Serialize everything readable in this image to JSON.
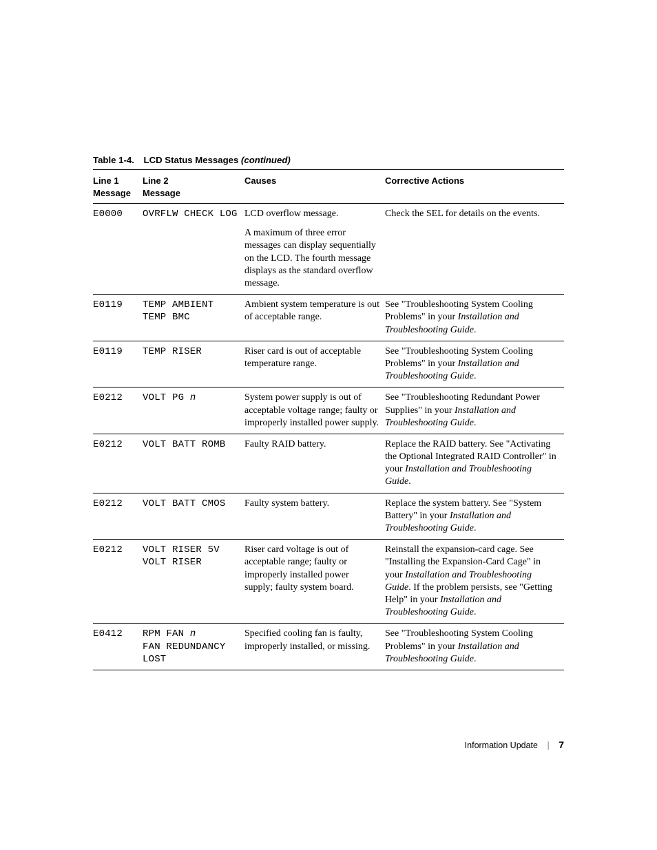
{
  "caption": {
    "label": "Table 1-4.",
    "title": "LCD Status Messages ",
    "cont": "(continued)"
  },
  "headers": {
    "c1a": "Line 1",
    "c1b": "Message",
    "c2a": "Line 2",
    "c2b": "Message",
    "c3": "Causes",
    "c4": "Corrective Actions"
  },
  "rows": [
    {
      "l1": "E0000",
      "l2": "OVRFLW CHECK LOG",
      "cause_main": "LCD overflow message.",
      "cause_sub": "A maximum of three error messages can display sequentially on the LCD. The fourth message displays as the standard overflow message.",
      "fix": "Check the SEL for details on the events."
    },
    {
      "l1": "E0119",
      "l2a": "TEMP AMBIENT",
      "l2b": "TEMP BMC",
      "cause": "Ambient system temperature is out of acceptable range.",
      "fix_pre": "See \"Troubleshooting System Cooling Problems\" in your ",
      "fix_ital": "Installation and Troubleshooting Guide",
      "fix_post": "."
    },
    {
      "l1": "E0119",
      "l2": "TEMP RISER",
      "cause": "Riser card is out of acceptable temperature range.",
      "fix_pre": "See \"Troubleshooting System Cooling Problems\" in your ",
      "fix_ital": "Installation and Troubleshooting Guide",
      "fix_post": "."
    },
    {
      "l1": "E0212",
      "l2_pre": "VOLT PG ",
      "l2_var": "n",
      "cause": "System power supply is out of acceptable voltage range; faulty or improperly installed power supply.",
      "fix_pre": "See \"Troubleshooting Redundant Power Supplies\" in your ",
      "fix_ital": "Installation and Troubleshooting Guide",
      "fix_post": "."
    },
    {
      "l1": "E0212",
      "l2": "VOLT BATT ROMB",
      "cause": "Faulty RAID battery.",
      "fix_pre": "Replace the RAID battery. See \"Activating the Optional Integrated RAID Controller\" in your ",
      "fix_ital": "Installation and Troubleshooting Guide",
      "fix_post": "."
    },
    {
      "l1": "E0212",
      "l2": "VOLT BATT CMOS",
      "cause": "Faulty system battery.",
      "fix_pre": "Replace the system battery. See \"System Battery\" in your ",
      "fix_ital": "Installation and Troubleshooting Guide",
      "fix_post": "."
    },
    {
      "l1": "E0212",
      "l2a": "VOLT RISER 5V",
      "l2b": "VOLT RISER",
      "cause": "Riser card voltage is out of acceptable range; faulty or improperly installed power supply; faulty system board.",
      "fix_pre": "Reinstall the expansion-card cage. See \"Installing the Expansion-Card Cage\" in your ",
      "fix_ital": "Installation and Troubleshooting Guide",
      "fix_mid": ". If the problem persists, see \"Getting Help\" in your ",
      "fix_ital2": "Installation and Troubleshooting Guide",
      "fix_post": "."
    },
    {
      "l1": "E0412",
      "l2a_pre": "RPM FAN ",
      "l2a_var": "n",
      "l2b": "FAN REDUNDANCY LOST",
      "cause": "Specified cooling fan is faulty, improperly installed, or missing.",
      "fix_pre": "See \"Troubleshooting System Cooling Problems\" in your ",
      "fix_ital": "Installation and Troubleshooting Guide",
      "fix_post": "."
    }
  ],
  "footer": {
    "section": "Information Update",
    "page": "7"
  }
}
